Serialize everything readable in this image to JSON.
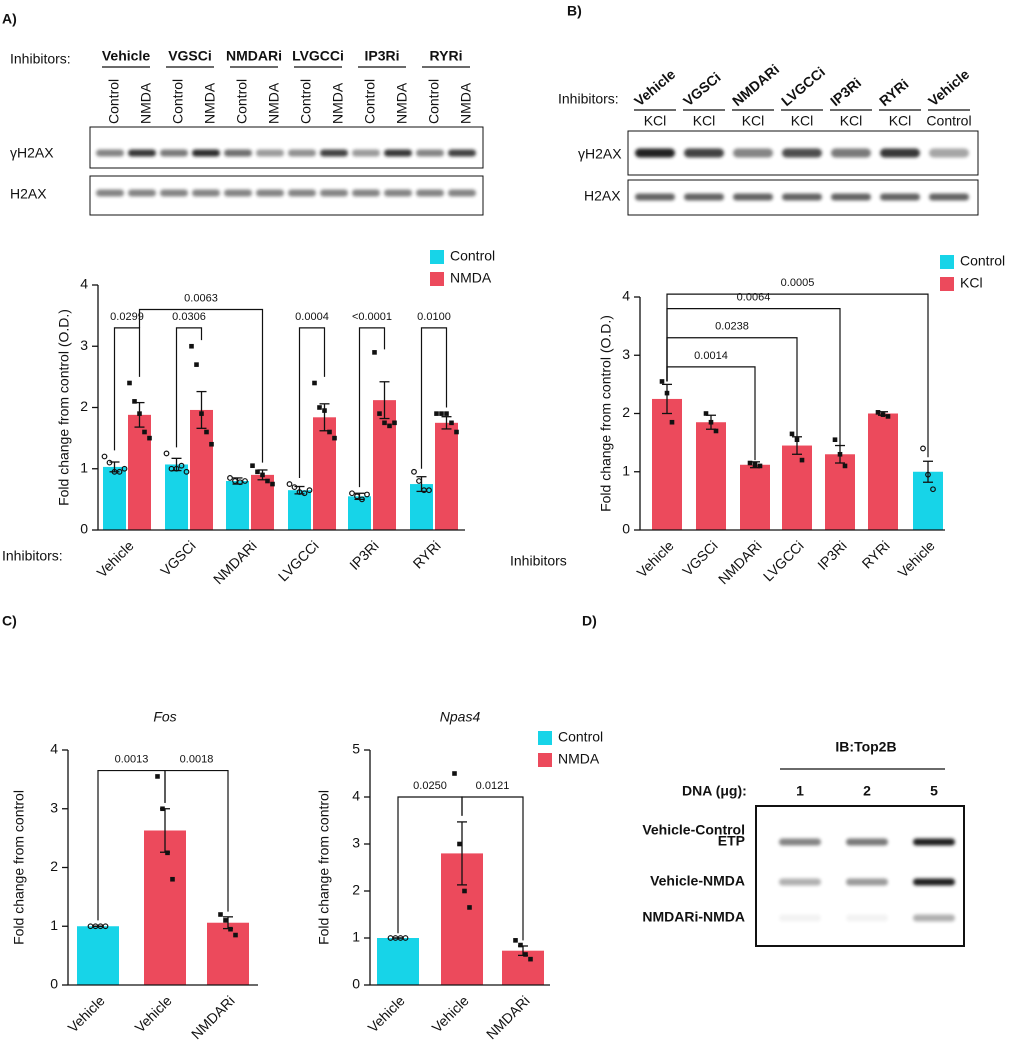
{
  "panel_a_blot": {
    "letter": "A)",
    "inhibitors_label": "Inhibitors:",
    "groups": [
      "Vehicle",
      "VGSCi",
      "NMDARi",
      "LVGCCi",
      "IP3Ri",
      "RYRi"
    ],
    "lanes": [
      "Control",
      "NMDA",
      "Control",
      "NMDA",
      "Control",
      "NMDA",
      "Control",
      "NMDA",
      "Control",
      "NMDA",
      "Control",
      "NMDA"
    ],
    "rows": [
      "γH2AX",
      "H2AX"
    ]
  },
  "panel_b_blot": {
    "letter": "B)",
    "inhibitors_label": "Inhibitors:",
    "groups": [
      "Vehicle",
      "VGSCi",
      "NMDARi",
      "LVGCCi",
      "IP3Ri",
      "RYRi",
      "Vehicle"
    ],
    "lanes": [
      "KCl",
      "KCl",
      "KCl",
      "KCl",
      "KCl",
      "KCl",
      "Control"
    ],
    "rows": [
      "γH2AX",
      "H2AX"
    ]
  },
  "panel_c": {
    "letter": "C)"
  },
  "panel_d": {
    "letter": "D)",
    "antibody": "IB:Top2B",
    "dna_label": "DNA (μg):",
    "amounts": [
      1,
      2,
      5
    ],
    "rows": [
      "Vehicle-Control",
      "ETP",
      "Vehicle-NMDA",
      "NMDARi-NMDA"
    ]
  },
  "chart_data": [
    {
      "type": "bar",
      "ylabel": "Fold change from control (O.D.)",
      "xlabel": "Inhibitors:",
      "categories": [
        "Vehicle",
        "VGSCi",
        "NMDARi",
        "LVGCCi",
        "IP3Ri",
        "RYRi"
      ],
      "series": [
        {
          "name": "Control",
          "color": "#17d4e8",
          "marker": "circle",
          "values": [
            1.03,
            1.07,
            0.8,
            0.65,
            0.55,
            0.75
          ],
          "errors": [
            0.08,
            0.1,
            0.05,
            0.06,
            0.05,
            0.12
          ],
          "points": [
            [
              1.2,
              1.1,
              0.95,
              0.95,
              1.0
            ],
            [
              1.25,
              1.0,
              1.0,
              1.05,
              0.95
            ],
            [
              0.85,
              0.8,
              0.78,
              0.8
            ],
            [
              0.75,
              0.7,
              0.62,
              0.6,
              0.65
            ],
            [
              0.6,
              0.55,
              0.5,
              0.58
            ],
            [
              0.95,
              0.8,
              0.65,
              0.65
            ]
          ]
        },
        {
          "name": "NMDA",
          "color": "#ec4a5c",
          "marker": "square",
          "values": [
            1.88,
            1.96,
            0.9,
            1.84,
            2.12,
            1.75
          ],
          "errors": [
            0.2,
            0.3,
            0.08,
            0.22,
            0.3,
            0.1
          ],
          "points": [
            [
              2.4,
              2.1,
              1.9,
              1.6,
              1.5
            ],
            [
              3.0,
              2.7,
              1.9,
              1.6,
              1.4
            ],
            [
              1.05,
              0.95,
              0.9,
              0.8,
              0.75
            ],
            [
              2.4,
              2.0,
              1.95,
              1.6,
              1.5
            ],
            [
              2.9,
              1.9,
              1.75,
              1.7,
              1.75
            ],
            [
              1.9,
              1.9,
              1.9,
              1.75,
              1.6
            ]
          ]
        }
      ],
      "annotations": [
        "0.0299",
        "0.0306",
        "0.0063",
        "0.0004",
        "<0.0001",
        "0.0100"
      ],
      "ylim": [
        0,
        4
      ],
      "yticks": [
        0,
        1,
        2,
        3,
        4
      ]
    },
    {
      "type": "bar",
      "ylabel": "Fold change from control (O.D.)",
      "xlabel": "Inhibitors",
      "categories": [
        "Vehicle",
        "VGSCi",
        "NMDARi",
        "LVGCCi",
        "IP3Ri",
        "RYRi",
        "Vehicle"
      ],
      "values": [
        2.25,
        1.85,
        1.12,
        1.45,
        1.3,
        2.0,
        1.0
      ],
      "errors": [
        0.25,
        0.12,
        0.05,
        0.15,
        0.15,
        0.03,
        0.18
      ],
      "points": [
        [
          2.55,
          2.35,
          1.85
        ],
        [
          2.0,
          1.85,
          1.7
        ],
        [
          1.15,
          1.12,
          1.1
        ],
        [
          1.65,
          1.55,
          1.2
        ],
        [
          1.55,
          1.3,
          1.1
        ],
        [
          2.02,
          1.98,
          1.95
        ],
        [
          1.4,
          0.95,
          0.7
        ]
      ],
      "colors": [
        "#ec4a5c",
        "#ec4a5c",
        "#ec4a5c",
        "#ec4a5c",
        "#ec4a5c",
        "#ec4a5c",
        "#17d4e8"
      ],
      "markers": [
        "square",
        "square",
        "square",
        "square",
        "square",
        "square",
        "circle"
      ],
      "legend": [
        {
          "name": "Control",
          "color": "#17d4e8"
        },
        {
          "name": "KCl",
          "color": "#ec4a5c"
        }
      ],
      "annotations": [
        "0.0014",
        "0.0238",
        "0.0064",
        "0.0005"
      ],
      "ylim": [
        0,
        4
      ],
      "yticks": [
        0,
        1,
        2,
        3,
        4
      ]
    },
    {
      "type": "bar",
      "title": "Fos",
      "ylabel": "Fold change from control",
      "categories": [
        "Vehicle",
        "Vehicle",
        "NMDARi"
      ],
      "values": [
        1.0,
        2.63,
        1.06
      ],
      "errors": [
        0,
        0.37,
        0.1
      ],
      "points": [
        [
          1,
          1,
          1,
          1
        ],
        [
          3.55,
          3.0,
          2.25,
          1.8
        ],
        [
          1.2,
          1.1,
          0.95,
          0.85
        ]
      ],
      "colors": [
        "#17d4e8",
        "#ec4a5c",
        "#ec4a5c"
      ],
      "markers": [
        "circle",
        "square",
        "square"
      ],
      "annotations": [
        "0.0013",
        "0.0018"
      ],
      "ylim": [
        0,
        4
      ],
      "yticks": [
        0,
        1,
        2,
        3,
        4
      ]
    },
    {
      "type": "bar",
      "title": "Npas4",
      "ylabel": "Fold change from control",
      "categories": [
        "Vehicle",
        "Vehicle",
        "NMDARi"
      ],
      "values": [
        1.0,
        2.8,
        0.73
      ],
      "errors": [
        0,
        0.67,
        0.1
      ],
      "points": [
        [
          1,
          1,
          1,
          1
        ],
        [
          4.5,
          3.0,
          2.0,
          1.65
        ],
        [
          0.95,
          0.85,
          0.65,
          0.55
        ]
      ],
      "colors": [
        "#17d4e8",
        "#ec4a5c",
        "#ec4a5c"
      ],
      "markers": [
        "circle",
        "square",
        "square"
      ],
      "legend": [
        {
          "name": "Control",
          "color": "#17d4e8"
        },
        {
          "name": "NMDA",
          "color": "#ec4a5c"
        }
      ],
      "annotations": [
        "0.0250",
        "0.0121"
      ],
      "ylim": [
        0,
        5
      ],
      "yticks": [
        0,
        1,
        2,
        3,
        4,
        5
      ]
    }
  ]
}
